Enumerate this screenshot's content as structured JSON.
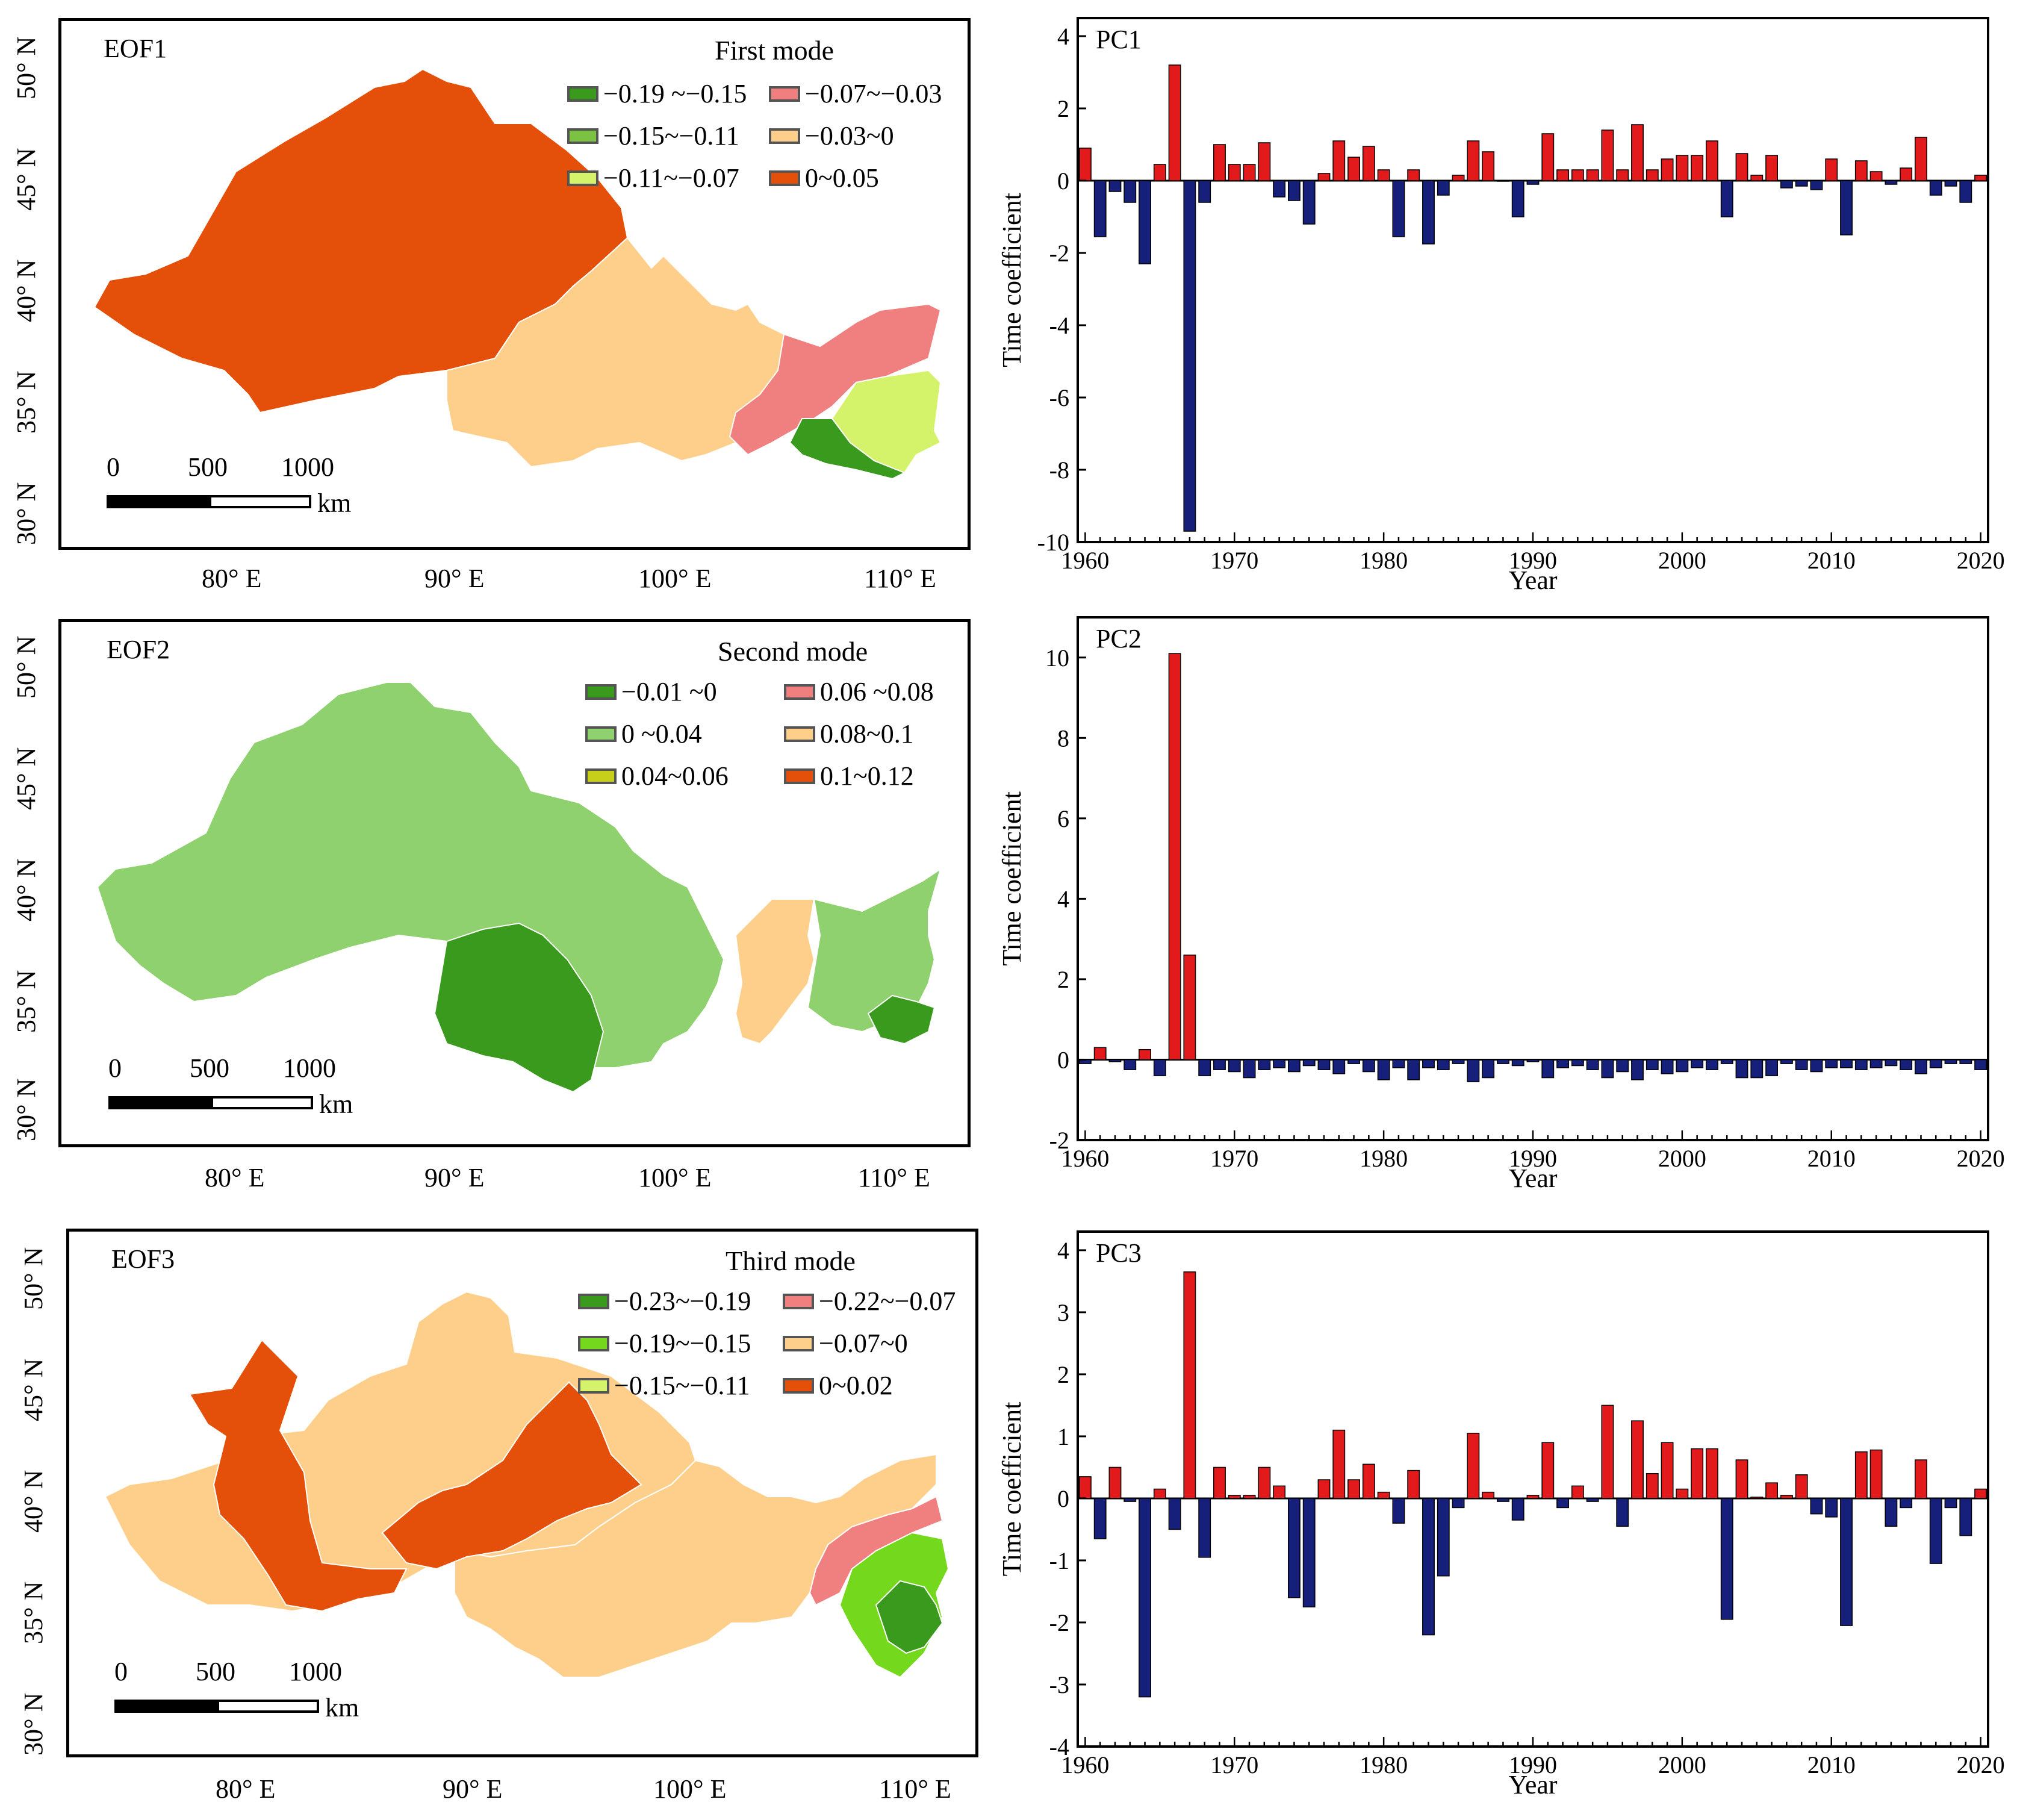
{
  "colors": {
    "pos_bar": "#e31a1c",
    "neg_bar": "#16207a",
    "map_outline": "#ffffff"
  },
  "map_axes": {
    "lat_labels": [
      "50° N",
      "45° N",
      "40° N",
      "35° N",
      "30° N"
    ],
    "lon_labels": [
      "80° E",
      "90° E",
      "100° E",
      "110° E"
    ],
    "scale_labels": [
      "0",
      "500",
      "1000"
    ],
    "scale_unit": "km"
  },
  "maps": [
    {
      "title": "EOF1",
      "legend_title": "First mode",
      "legend": [
        {
          "label": "−0.19 ~−0.15",
          "color": "#3a9a1e"
        },
        {
          "label": "−0.07~−0.03",
          "color": "#f08080"
        },
        {
          "label": "−0.15~−0.11",
          "color": "#7cc242"
        },
        {
          "label": "−0.03~0",
          "color": "#fdcf8a"
        },
        {
          "label": "−0.11~−0.07",
          "color": "#d4f26a"
        },
        {
          "label": "0~0.05",
          "color": "#e4500a"
        }
      ],
      "regions": [
        {
          "name": "northwest",
          "color": "#e4500a"
        },
        {
          "name": "plateau-east",
          "color": "#fdcf8a"
        },
        {
          "name": "loess-strip",
          "color": "#f08080"
        },
        {
          "name": "east-a",
          "color": "#d4f26a"
        },
        {
          "name": "east-b",
          "color": "#3a9a1e"
        }
      ]
    },
    {
      "title": "EOF2",
      "legend_title": "Second mode",
      "legend": [
        {
          "label": "−0.01 ~0",
          "color": "#3a9a1e"
        },
        {
          "label": "0.06 ~0.08",
          "color": "#f08080"
        },
        {
          "label": "0 ~0.04",
          "color": "#8fd16e"
        },
        {
          "label": "0.08~0.1",
          "color": "#fdcf8a"
        },
        {
          "label": "0.04~0.06",
          "color": "#c8cf1a"
        },
        {
          "label": "0.1~0.12",
          "color": "#e4500a"
        }
      ],
      "regions": [
        {
          "name": "northwest",
          "color": "#8fd16e"
        },
        {
          "name": "plateau-east",
          "color": "#3a9a1e"
        },
        {
          "name": "loess-strip",
          "color": "#fdcf8a"
        },
        {
          "name": "east-a",
          "color": "#8fd16e"
        },
        {
          "name": "east-b",
          "color": "#3a9a1e"
        }
      ]
    },
    {
      "title": "EOF3",
      "legend_title": "Third mode",
      "legend": [
        {
          "label": "−0.23~−0.19",
          "color": "#3a9a1e"
        },
        {
          "label": "−0.22~−0.07",
          "color": "#f08080"
        },
        {
          "label": "−0.19~−0.15",
          "color": "#74d81c"
        },
        {
          "label": "−0.07~0",
          "color": "#fdcf8a"
        },
        {
          "label": "−0.15~−0.11",
          "color": "#d4f26a"
        },
        {
          "label": "0~0.02",
          "color": "#e4500a"
        }
      ],
      "regions": [
        {
          "name": "northwest",
          "color": "#fdcf8a"
        },
        {
          "name": "plateau-east",
          "color": "#fdcf8a"
        },
        {
          "name": "loess-strip",
          "color": "#f08080"
        },
        {
          "name": "east-a",
          "color": "#74d81c"
        },
        {
          "name": "east-b",
          "color": "#3a9a1e"
        }
      ]
    }
  ],
  "chart_data": [
    {
      "type": "bar",
      "title": "PC1",
      "xlabel": "Year",
      "ylabel": "Time coefficient",
      "xlim": [
        1960,
        2020
      ],
      "ylim": [
        -10,
        4.5
      ],
      "xticks": [
        1960,
        1970,
        1980,
        1990,
        2000,
        2010,
        2020
      ],
      "yticks": [
        4,
        2,
        0,
        -2,
        -4,
        -6,
        -8,
        -10
      ],
      "x": [
        1960,
        1961,
        1962,
        1963,
        1964,
        1965,
        1966,
        1967,
        1968,
        1969,
        1970,
        1971,
        1972,
        1973,
        1974,
        1975,
        1976,
        1977,
        1978,
        1979,
        1980,
        1981,
        1982,
        1983,
        1984,
        1985,
        1986,
        1987,
        1988,
        1989,
        1990,
        1991,
        1992,
        1993,
        1994,
        1995,
        1996,
        1997,
        1998,
        1999,
        2000,
        2001,
        2002,
        2003,
        2004,
        2005,
        2006,
        2007,
        2008,
        2009,
        2010,
        2011,
        2012,
        2013,
        2014,
        2015,
        2016,
        2017,
        2018,
        2019,
        2020
      ],
      "values": [
        0.9,
        -1.55,
        -0.3,
        -0.6,
        -2.3,
        0.45,
        3.2,
        -9.7,
        -0.6,
        1.0,
        0.45,
        0.45,
        1.05,
        -0.45,
        -0.55,
        -1.2,
        0.2,
        1.1,
        0.65,
        0.95,
        0.3,
        -1.55,
        0.3,
        -1.75,
        -0.4,
        0.15,
        1.1,
        0.8,
        0,
        -1.0,
        -0.1,
        1.3,
        0.3,
        0.3,
        0.3,
        1.4,
        0.3,
        1.55,
        0.3,
        0.6,
        0.7,
        0.7,
        1.1,
        -1.0,
        0.75,
        0.15,
        0.7,
        -0.2,
        -0.15,
        -0.25,
        0.6,
        -1.5,
        0.55,
        0.25,
        -0.1,
        0.35,
        1.2,
        -0.4,
        -0.15,
        -0.6,
        0.15
      ]
    },
    {
      "type": "bar",
      "title": "PC2",
      "xlabel": "Year",
      "ylabel": "Time coefficient",
      "xlim": [
        1960,
        2020
      ],
      "ylim": [
        -2,
        11
      ],
      "xticks": [
        1960,
        1970,
        1980,
        1990,
        2000,
        2010,
        2020
      ],
      "yticks": [
        10,
        8,
        6,
        4,
        2,
        0,
        -2
      ],
      "x": [
        1960,
        1961,
        1962,
        1963,
        1964,
        1965,
        1966,
        1967,
        1968,
        1969,
        1970,
        1971,
        1972,
        1973,
        1974,
        1975,
        1976,
        1977,
        1978,
        1979,
        1980,
        1981,
        1982,
        1983,
        1984,
        1985,
        1986,
        1987,
        1988,
        1989,
        1990,
        1991,
        1992,
        1993,
        1994,
        1995,
        1996,
        1997,
        1998,
        1999,
        2000,
        2001,
        2002,
        2003,
        2004,
        2005,
        2006,
        2007,
        2008,
        2009,
        2010,
        2011,
        2012,
        2013,
        2014,
        2015,
        2016,
        2017,
        2018,
        2019,
        2020
      ],
      "values": [
        -0.1,
        0.3,
        -0.05,
        -0.25,
        0.25,
        -0.4,
        10.1,
        2.6,
        -0.4,
        -0.25,
        -0.3,
        -0.45,
        -0.25,
        -0.2,
        -0.3,
        -0.15,
        -0.25,
        -0.35,
        -0.1,
        -0.3,
        -0.5,
        -0.2,
        -0.5,
        -0.2,
        -0.25,
        -0.1,
        -0.55,
        -0.45,
        -0.1,
        -0.15,
        -0.05,
        -0.45,
        -0.2,
        -0.15,
        -0.25,
        -0.45,
        -0.3,
        -0.5,
        -0.25,
        -0.35,
        -0.3,
        -0.2,
        -0.25,
        -0.1,
        -0.45,
        -0.45,
        -0.4,
        -0.1,
        -0.25,
        -0.3,
        -0.2,
        -0.2,
        -0.25,
        -0.2,
        -0.15,
        -0.25,
        -0.35,
        -0.2,
        -0.1,
        -0.1,
        -0.25
      ]
    },
    {
      "type": "bar",
      "title": "PC3",
      "xlabel": "Year",
      "ylabel": "Time coefficient",
      "xlim": [
        1960,
        2020
      ],
      "ylim": [
        -4,
        4.3
      ],
      "xticks": [
        1960,
        1970,
        1980,
        1990,
        2000,
        2010,
        2020
      ],
      "yticks": [
        4,
        3,
        2,
        1,
        0,
        -1,
        -2,
        -3,
        -4
      ],
      "x": [
        1960,
        1961,
        1962,
        1963,
        1964,
        1965,
        1966,
        1967,
        1968,
        1969,
        1970,
        1971,
        1972,
        1973,
        1974,
        1975,
        1976,
        1977,
        1978,
        1979,
        1980,
        1981,
        1982,
        1983,
        1984,
        1985,
        1986,
        1987,
        1988,
        1989,
        1990,
        1991,
        1992,
        1993,
        1994,
        1995,
        1996,
        1997,
        1998,
        1999,
        2000,
        2001,
        2002,
        2003,
        2004,
        2005,
        2006,
        2007,
        2008,
        2009,
        2010,
        2011,
        2012,
        2013,
        2014,
        2015,
        2016,
        2017,
        2018,
        2019,
        2020
      ],
      "values": [
        0.35,
        -0.65,
        0.5,
        -0.05,
        -3.2,
        0.15,
        -0.5,
        3.65,
        -0.95,
        0.5,
        0.05,
        0.05,
        0.5,
        0.2,
        -1.6,
        -1.75,
        0.3,
        1.1,
        0.3,
        0.55,
        0.1,
        -0.4,
        0.45,
        -2.2,
        -1.25,
        -0.15,
        1.05,
        0.1,
        -0.05,
        -0.35,
        0.05,
        0.9,
        -0.15,
        0.2,
        -0.05,
        1.5,
        -0.45,
        1.25,
        0.4,
        0.9,
        0.15,
        0.8,
        0.8,
        -1.95,
        0.62,
        0.02,
        0.25,
        0.05,
        0.38,
        -0.25,
        -0.3,
        -2.05,
        0.75,
        0.78,
        -0.45,
        -0.15,
        0.62,
        -1.05,
        -0.15,
        -0.6,
        0.15
      ]
    }
  ]
}
